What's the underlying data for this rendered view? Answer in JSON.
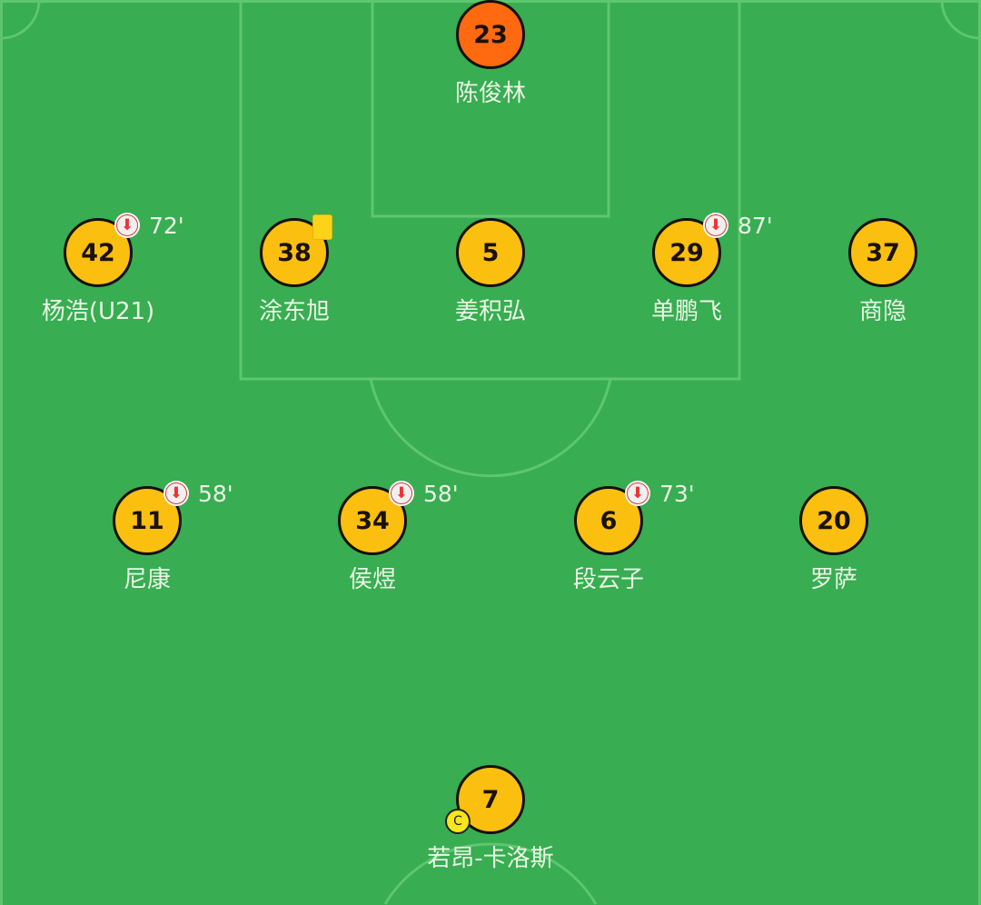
{
  "colors": {
    "pitch": "#38ad52",
    "lines": "#5ec66f",
    "player": "#fbbf0f",
    "goalkeeper": "#ff6a10",
    "yellow_card": "#ffd21a"
  },
  "players": [
    {
      "number": "23",
      "name": "陈俊林",
      "role": "goalkeeper"
    },
    {
      "number": "42",
      "name": "杨浩(U21)",
      "sub_minute": "72'",
      "icon": "substitution-out-icon"
    },
    {
      "number": "38",
      "name": "涂东旭",
      "card": "yellow-card-icon"
    },
    {
      "number": "5",
      "name": "姜积弘"
    },
    {
      "number": "29",
      "name": "单鹏飞",
      "sub_minute": "87'",
      "icon": "substitution-out-icon"
    },
    {
      "number": "37",
      "name": "商隐"
    },
    {
      "number": "11",
      "name": "尼康",
      "sub_minute": "58'",
      "icon": "substitution-out-icon"
    },
    {
      "number": "34",
      "name": "侯煜",
      "sub_minute": "58'",
      "icon": "substitution-out-icon"
    },
    {
      "number": "6",
      "name": "段云子",
      "sub_minute": "73'",
      "icon": "substitution-out-icon"
    },
    {
      "number": "20",
      "name": "罗萨"
    },
    {
      "number": "7",
      "name": "若昂-卡洛斯",
      "captain": "C"
    }
  ]
}
